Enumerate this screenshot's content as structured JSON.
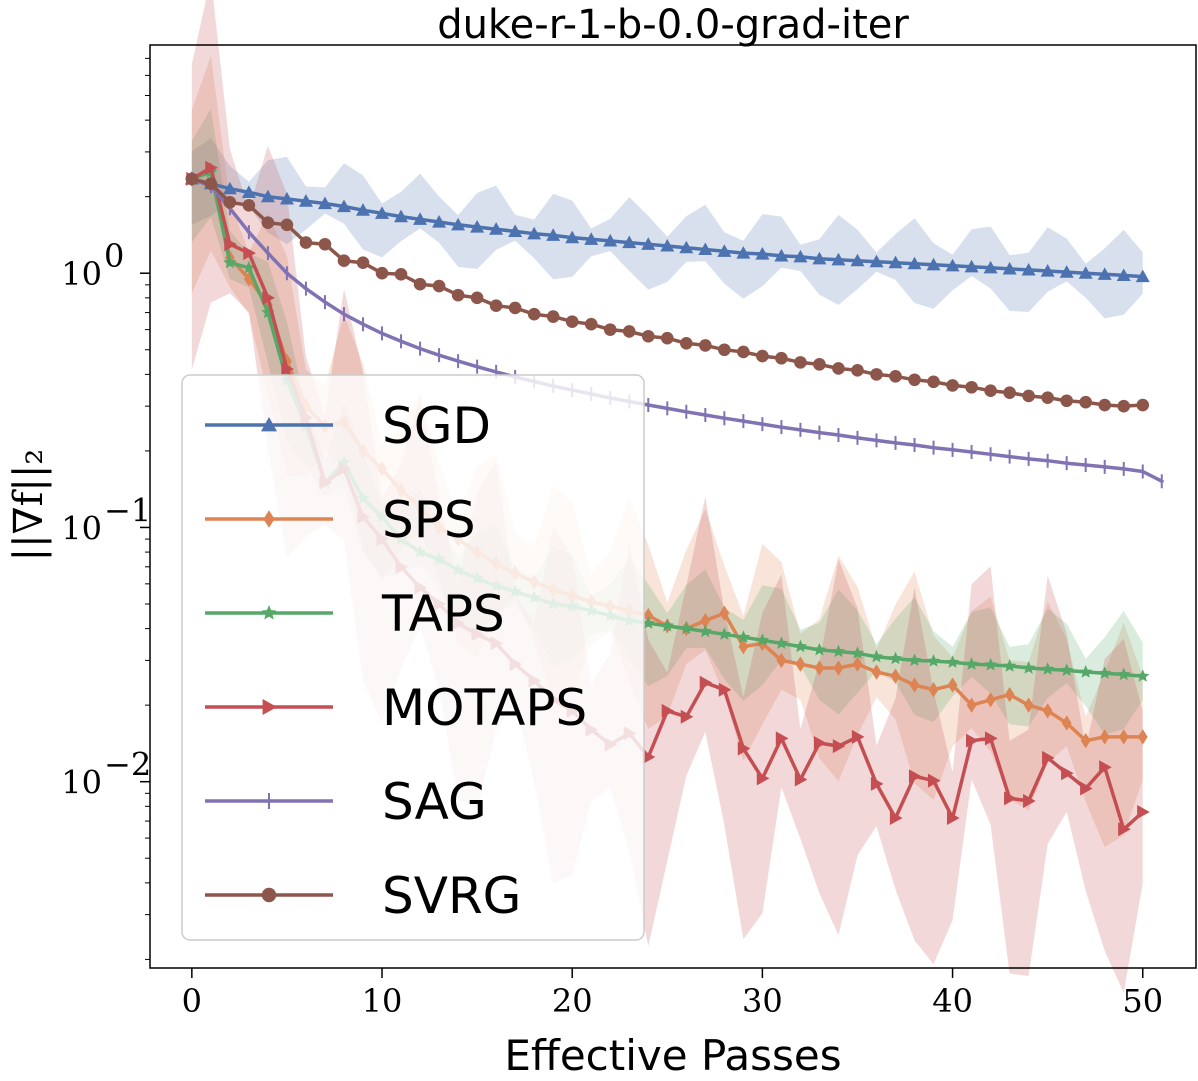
{
  "chart_data": {
    "type": "line",
    "title": "duke-r-1-b-0.0-grad-iter",
    "xlabel": "Effective Passes",
    "ylabel": "||∇f||₂",
    "xscale": "linear",
    "yscale": "log",
    "xlim": [
      -2.2,
      52.8
    ],
    "ylim": [
      0.00185,
      7.9
    ],
    "x_ticks": [
      0,
      10,
      20,
      30,
      40,
      50
    ],
    "x_tick_labels": [
      "0",
      "10",
      "20",
      "30",
      "40",
      "50"
    ],
    "y_ticks": [
      0.01,
      0.1,
      1
    ],
    "y_tick_bases": [
      "10",
      "10",
      "10"
    ],
    "y_tick_exponents": [
      "−2",
      "−1",
      "0"
    ],
    "legend_position": "center-left",
    "series": [
      {
        "name": "SGD",
        "color": "#4c72b0",
        "marker": "triangle",
        "x": [
          0,
          1,
          2,
          3,
          4,
          5,
          6,
          7,
          8,
          9,
          10,
          11,
          12,
          13,
          14,
          15,
          16,
          17,
          18,
          19,
          20,
          21,
          22,
          23,
          24,
          25,
          26,
          27,
          28,
          29,
          30,
          31,
          32,
          33,
          34,
          35,
          36,
          37,
          38,
          39,
          40,
          41,
          42,
          43,
          44,
          45,
          46,
          47,
          48,
          49,
          50
        ],
        "y": [
          2.35,
          2.25,
          2.15,
          2.08,
          2.0,
          1.96,
          1.92,
          1.88,
          1.83,
          1.77,
          1.72,
          1.67,
          1.63,
          1.59,
          1.55,
          1.52,
          1.49,
          1.46,
          1.43,
          1.41,
          1.38,
          1.36,
          1.34,
          1.32,
          1.3,
          1.28,
          1.26,
          1.24,
          1.22,
          1.2,
          1.19,
          1.17,
          1.16,
          1.14,
          1.13,
          1.12,
          1.11,
          1.1,
          1.09,
          1.08,
          1.07,
          1.06,
          1.05,
          1.04,
          1.03,
          1.02,
          1.01,
          1.0,
          0.99,
          0.98,
          0.97
        ],
        "band": 0.18
      },
      {
        "name": "SPS",
        "color": "#dd8452",
        "marker": "diamond",
        "x": [
          0,
          1,
          2,
          3,
          4,
          5,
          6,
          7,
          8,
          9,
          10,
          11,
          12,
          13,
          14,
          15,
          16,
          17,
          18,
          19,
          20,
          21,
          22,
          23,
          24,
          25,
          26,
          27,
          28,
          29,
          30,
          31,
          32,
          33,
          34,
          35,
          36,
          37,
          38,
          39,
          40,
          41,
          42,
          43,
          44,
          45,
          46,
          47,
          48,
          49,
          50
        ],
        "y": [
          2.35,
          2.55,
          1.15,
          0.95,
          0.75,
          0.45,
          0.3,
          0.25,
          0.26,
          0.2,
          0.17,
          0.14,
          0.12,
          0.1,
          0.09,
          0.08,
          0.072,
          0.066,
          0.061,
          0.057,
          0.054,
          0.051,
          0.049,
          0.047,
          0.045,
          0.041,
          0.04,
          0.043,
          0.046,
          0.034,
          0.035,
          0.03,
          0.029,
          0.028,
          0.028,
          0.029,
          0.027,
          0.026,
          0.024,
          0.023,
          0.024,
          0.02,
          0.021,
          0.022,
          0.02,
          0.019,
          0.017,
          0.0145,
          0.015,
          0.015,
          0.015
        ],
        "band": 0.45
      },
      {
        "name": "TAPS",
        "color": "#55a868",
        "marker": "star",
        "x": [
          0,
          1,
          2,
          3,
          4,
          5,
          6,
          7,
          8,
          9,
          10,
          11,
          12,
          13,
          14,
          15,
          16,
          17,
          18,
          19,
          20,
          21,
          22,
          23,
          24,
          25,
          26,
          27,
          28,
          29,
          30,
          31,
          32,
          33,
          34,
          35,
          36,
          37,
          38,
          39,
          40,
          41,
          42,
          43,
          44,
          45,
          46,
          47,
          48,
          49,
          50
        ],
        "y": [
          2.35,
          2.5,
          1.1,
          1.05,
          0.7,
          0.38,
          0.25,
          0.15,
          0.18,
          0.13,
          0.11,
          0.09,
          0.08,
          0.075,
          0.068,
          0.063,
          0.059,
          0.056,
          0.053,
          0.05,
          0.049,
          0.047,
          0.045,
          0.043,
          0.042,
          0.041,
          0.04,
          0.039,
          0.038,
          0.037,
          0.036,
          0.035,
          0.034,
          0.033,
          0.0325,
          0.032,
          0.031,
          0.0305,
          0.03,
          0.0298,
          0.0295,
          0.029,
          0.0288,
          0.0285,
          0.028,
          0.0277,
          0.0274,
          0.027,
          0.0267,
          0.0264,
          0.026
        ],
        "band": 0.25
      },
      {
        "name": "MOTAPS",
        "color": "#c44e52",
        "marker": "triangle-right",
        "x": [
          0,
          1,
          2,
          3,
          4,
          5,
          6,
          7,
          8,
          9,
          10,
          11,
          12,
          13,
          14,
          15,
          16,
          17,
          18,
          19,
          20,
          21,
          22,
          23,
          24,
          25,
          26,
          27,
          28,
          29,
          30,
          31,
          32,
          33,
          34,
          35,
          36,
          37,
          38,
          39,
          40,
          41,
          42,
          43,
          44,
          45,
          46,
          47,
          48,
          49,
          50
        ],
        "y": [
          2.35,
          2.6,
          1.3,
          1.2,
          0.8,
          0.42,
          0.27,
          0.15,
          0.17,
          0.11,
          0.09,
          0.07,
          0.058,
          0.05,
          0.042,
          0.038,
          0.035,
          0.029,
          0.025,
          0.021,
          0.019,
          0.016,
          0.014,
          0.0155,
          0.0125,
          0.019,
          0.018,
          0.0245,
          0.023,
          0.0135,
          0.0103,
          0.0148,
          0.0102,
          0.0142,
          0.0138,
          0.015,
          0.0098,
          0.0072,
          0.0105,
          0.0101,
          0.0072,
          0.0145,
          0.0148,
          0.0086,
          0.0084,
          0.0124,
          0.0108,
          0.0094,
          0.0114,
          0.0065,
          0.0076
        ],
        "band": 0.75
      },
      {
        "name": "SAG",
        "color": "#8172b3",
        "marker": "plus",
        "x": [
          0,
          1,
          2,
          3,
          4,
          5,
          6,
          7,
          8,
          9,
          10,
          11,
          12,
          13,
          14,
          15,
          16,
          17,
          18,
          19,
          20,
          21,
          22,
          23,
          24,
          25,
          26,
          27,
          28,
          29,
          30,
          31,
          32,
          33,
          34,
          35,
          36,
          37,
          38,
          39,
          40,
          41,
          42,
          43,
          44,
          45,
          46,
          47,
          48,
          49,
          50,
          51
        ],
        "y": [
          2.35,
          2.2,
          1.8,
          1.45,
          1.2,
          1.0,
          0.87,
          0.77,
          0.69,
          0.63,
          0.58,
          0.54,
          0.505,
          0.476,
          0.451,
          0.429,
          0.409,
          0.391,
          0.375,
          0.36,
          0.347,
          0.335,
          0.323,
          0.313,
          0.303,
          0.294,
          0.285,
          0.277,
          0.269,
          0.262,
          0.255,
          0.248,
          0.242,
          0.236,
          0.231,
          0.225,
          0.22,
          0.215,
          0.211,
          0.206,
          0.202,
          0.198,
          0.194,
          0.19,
          0.186,
          0.183,
          0.179,
          0.176,
          0.173,
          0.17,
          0.166,
          0.152
        ],
        "band": 0.0
      },
      {
        "name": "SVRG",
        "color": "#8c564b",
        "marker": "circle",
        "x": [
          0,
          1,
          2,
          3,
          4,
          5,
          6,
          7,
          8,
          9,
          10,
          11,
          12,
          13,
          14,
          15,
          16,
          17,
          18,
          19,
          20,
          21,
          22,
          23,
          24,
          25,
          26,
          27,
          28,
          29,
          30,
          31,
          32,
          33,
          34,
          35,
          36,
          37,
          38,
          39,
          40,
          41,
          42,
          43,
          44,
          45,
          46,
          47,
          48,
          49,
          50
        ],
        "y": [
          2.35,
          2.25,
          1.9,
          1.85,
          1.58,
          1.55,
          1.32,
          1.3,
          1.12,
          1.1,
          1.0,
          0.99,
          0.905,
          0.89,
          0.82,
          0.8,
          0.745,
          0.73,
          0.69,
          0.675,
          0.645,
          0.63,
          0.6,
          0.59,
          0.565,
          0.555,
          0.53,
          0.52,
          0.5,
          0.49,
          0.472,
          0.463,
          0.446,
          0.438,
          0.422,
          0.415,
          0.4,
          0.393,
          0.381,
          0.374,
          0.362,
          0.356,
          0.345,
          0.339,
          0.329,
          0.324,
          0.315,
          0.311,
          0.303,
          0.3,
          0.303
        ],
        "band": 0.0
      }
    ]
  }
}
